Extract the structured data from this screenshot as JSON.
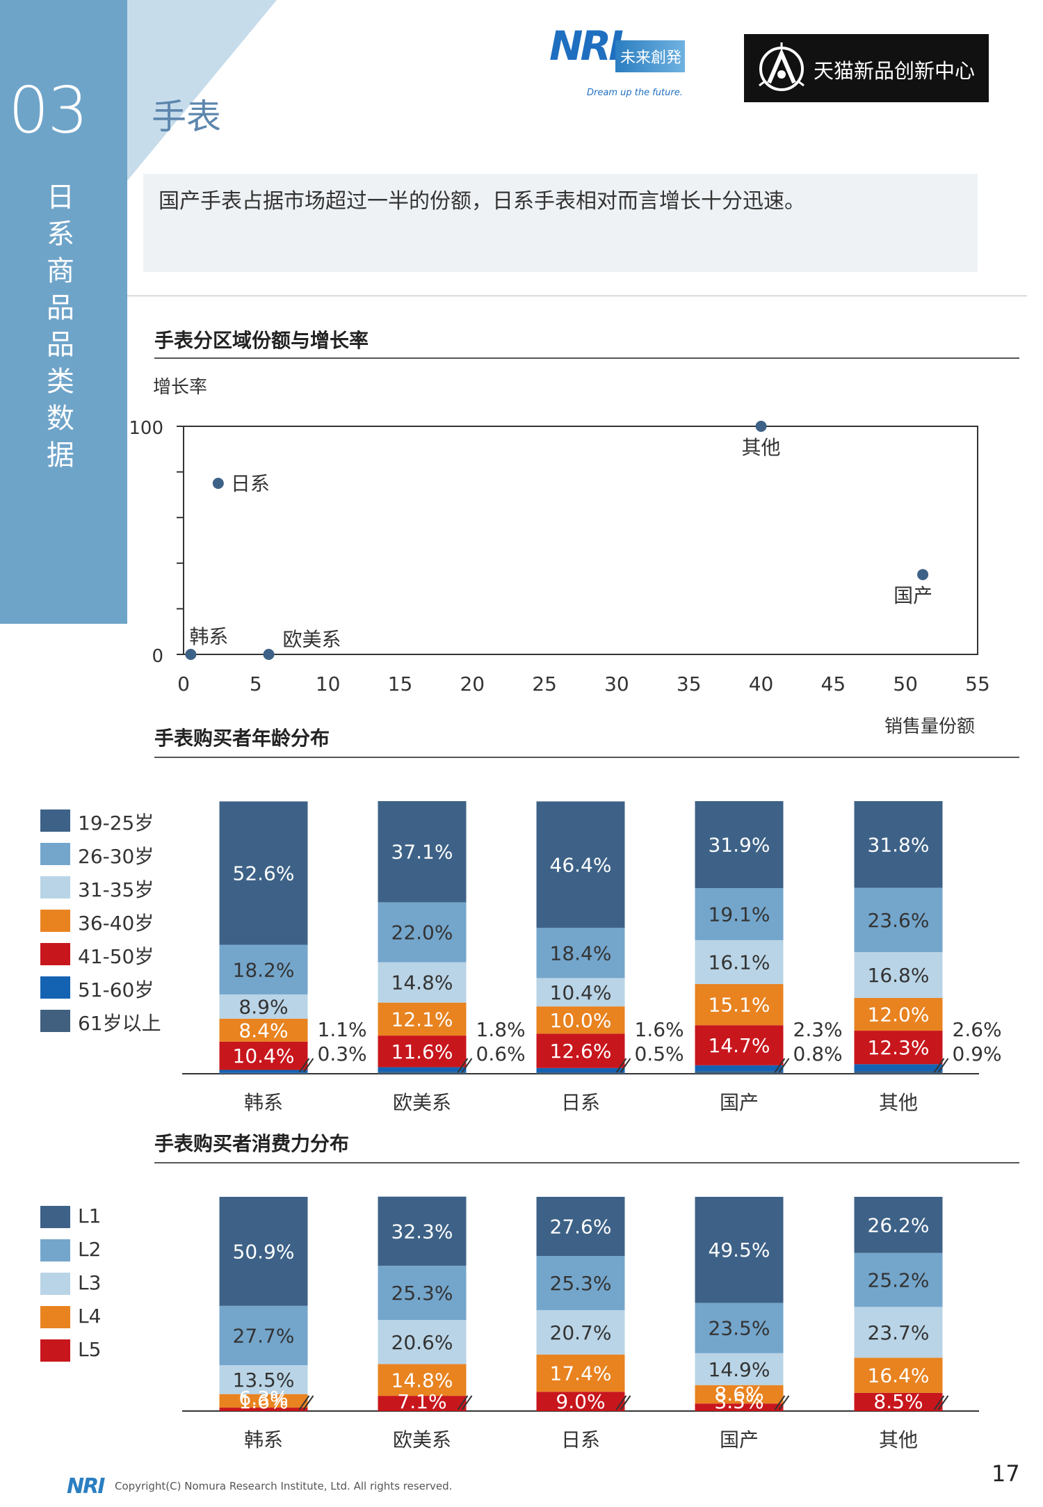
{
  "colors": {
    "c1": "#3e6287",
    "c2": "#74a6cc",
    "c3": "#b9d4e6",
    "c4": "#e88320",
    "c5": "#c8161d",
    "c6": "#1463b2",
    "c7": "#41607f"
  },
  "section": {
    "number": "03",
    "title_chars": [
      "日",
      "系",
      "商",
      "品",
      "品",
      "类",
      "数",
      "据"
    ]
  },
  "page_title": "手表",
  "logos": {
    "nri_main": "NRI",
    "nri_jp": "未来創発",
    "nri_slogan": "Dream up the future.",
    "tmall": "天猫新品创新中心"
  },
  "summary": "国产手表占据市场超过一半的份额，日系手表相对而言增长十分迅速。",
  "scatter": {
    "heading": "手表分区域份额与增长率",
    "ylabel": "增长率",
    "xlabel": "销售量份额",
    "y_ticks": [
      "100",
      "0"
    ],
    "x_ticks": [
      "0",
      "5",
      "10",
      "15",
      "20",
      "25",
      "30",
      "35",
      "40",
      "45",
      "50",
      "55"
    ],
    "chart_data": {
      "type": "scatter",
      "xlim": [
        0,
        55
      ],
      "ylim": [
        0,
        100
      ],
      "points": [
        {
          "label": "日系",
          "x": 2.4,
          "y": 75
        },
        {
          "label": "其他",
          "x": 40,
          "y": 100
        },
        {
          "label": "国产",
          "x": 51.2,
          "y": 35
        },
        {
          "label": "韩系",
          "x": 0.5,
          "y": 0
        },
        {
          "label": "欧美系",
          "x": 5.9,
          "y": 0
        }
      ]
    }
  },
  "age": {
    "heading": "手表购买者年龄分布",
    "legend": [
      "19-25岁",
      "26-30岁",
      "31-35岁",
      "36-40岁",
      "41-50岁",
      "51-60岁",
      "61岁以上"
    ],
    "chart_data": {
      "type": "bar",
      "stacked": true,
      "categories": [
        "韩系",
        "欧美系",
        "日系",
        "国产",
        "其他"
      ],
      "series": [
        {
          "name": "61岁以上",
          "values": [
            0.3,
            0.6,
            0.5,
            0.8,
            0.9
          ]
        },
        {
          "name": "51-60岁",
          "values": [
            1.1,
            1.8,
            1.6,
            2.3,
            2.6
          ]
        },
        {
          "name": "41-50岁",
          "values": [
            10.4,
            11.6,
            12.6,
            14.7,
            12.3
          ]
        },
        {
          "name": "36-40岁",
          "values": [
            8.4,
            12.1,
            10.0,
            15.1,
            12.0
          ]
        },
        {
          "name": "31-35岁",
          "values": [
            8.9,
            14.8,
            10.4,
            16.1,
            16.8
          ]
        },
        {
          "name": "26-30岁",
          "values": [
            18.2,
            22.0,
            18.4,
            19.1,
            23.6
          ]
        },
        {
          "name": "19-25岁",
          "values": [
            52.6,
            37.1,
            46.4,
            31.9,
            31.8
          ]
        }
      ],
      "labels": [
        [
          "0.3%",
          "1.1%",
          "10.4%",
          "8.4%",
          "8.9%",
          "18.2%",
          "52.6%"
        ],
        [
          "0.6%",
          "1.8%",
          "11.6%",
          "12.1%",
          "14.8%",
          "22.0%",
          "37.1%"
        ],
        [
          "0.5%",
          "1.6%",
          "12.6%",
          "10.0%",
          "10.4%",
          "18.4%",
          "46.4%"
        ],
        [
          "0.8%",
          "2.3%",
          "14.7%",
          "15.1%",
          "16.1%",
          "19.1%",
          "31.9%"
        ],
        [
          "0.9%",
          "2.6%",
          "12.3%",
          "12.0%",
          "16.8%",
          "23.6%",
          "31.8%"
        ]
      ]
    }
  },
  "income": {
    "heading": "手表购买者消费力分布",
    "legend": [
      "L1",
      "L2",
      "L3",
      "L4",
      "L5"
    ],
    "chart_data": {
      "type": "bar",
      "stacked": true,
      "categories": [
        "韩系",
        "欧美系",
        "日系",
        "国产",
        "其他"
      ],
      "series": [
        {
          "name": "L5",
          "values": [
            1.6,
            7.1,
            9.0,
            3.5,
            8.5
          ]
        },
        {
          "name": "L4",
          "values": [
            6.3,
            14.8,
            17.4,
            8.6,
            16.4
          ]
        },
        {
          "name": "L3",
          "values": [
            13.5,
            20.6,
            20.7,
            14.9,
            23.7
          ]
        },
        {
          "name": "L2",
          "values": [
            27.7,
            25.3,
            25.3,
            23.5,
            25.2
          ]
        },
        {
          "name": "L1",
          "values": [
            50.9,
            32.3,
            27.6,
            49.5,
            26.2
          ]
        }
      ],
      "labels": [
        [
          "1.6%",
          "6.3%",
          "13.5%",
          "27.7%",
          "50.9%"
        ],
        [
          "7.1%",
          "14.8%",
          "20.6%",
          "25.3%",
          "32.3%"
        ],
        [
          "9.0%",
          "17.4%",
          "20.7%",
          "25.3%",
          "27.6%"
        ],
        [
          "3.5%",
          "8.6%",
          "14.9%",
          "23.5%",
          "49.5%"
        ],
        [
          "8.5%",
          "16.4%",
          "23.7%",
          "25.2%",
          "26.2%"
        ]
      ]
    }
  },
  "footer": {
    "logo": "NRI",
    "copyright": "Copyright(C) Nomura Research Institute, Ltd. All rights reserved.",
    "page": "17"
  }
}
